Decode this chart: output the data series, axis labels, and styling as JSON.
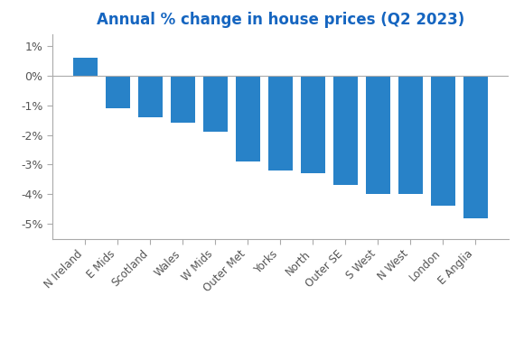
{
  "title": "Annual % change in house prices (Q2 2023)",
  "categories": [
    "N Ireland",
    "E Mids",
    "Scotland",
    "Wales",
    "W Mids",
    "Outer Met",
    "Yorks",
    "North",
    "Outer SE",
    "S West",
    "N West",
    "London",
    "E Anglia"
  ],
  "values": [
    0.6,
    -1.1,
    -1.4,
    -1.6,
    -1.9,
    -2.9,
    -3.2,
    -3.3,
    -3.7,
    -4.0,
    -4.0,
    -4.4,
    -4.8
  ],
  "bar_color": "#2882C8",
  "background_color": "#ffffff",
  "ylim": [
    -5.5,
    1.4
  ],
  "yticks": [
    1,
    0,
    -1,
    -2,
    -3,
    -4,
    -5
  ],
  "ytick_labels": [
    "1%",
    "0%",
    "-1%",
    "-2%",
    "-3%",
    "-4%",
    "-5%"
  ],
  "title_color": "#1565C0",
  "title_fontsize": 12,
  "spine_color": "#aaaaaa",
  "tick_label_color": "#555555",
  "zero_line_color": "#aaaaaa"
}
